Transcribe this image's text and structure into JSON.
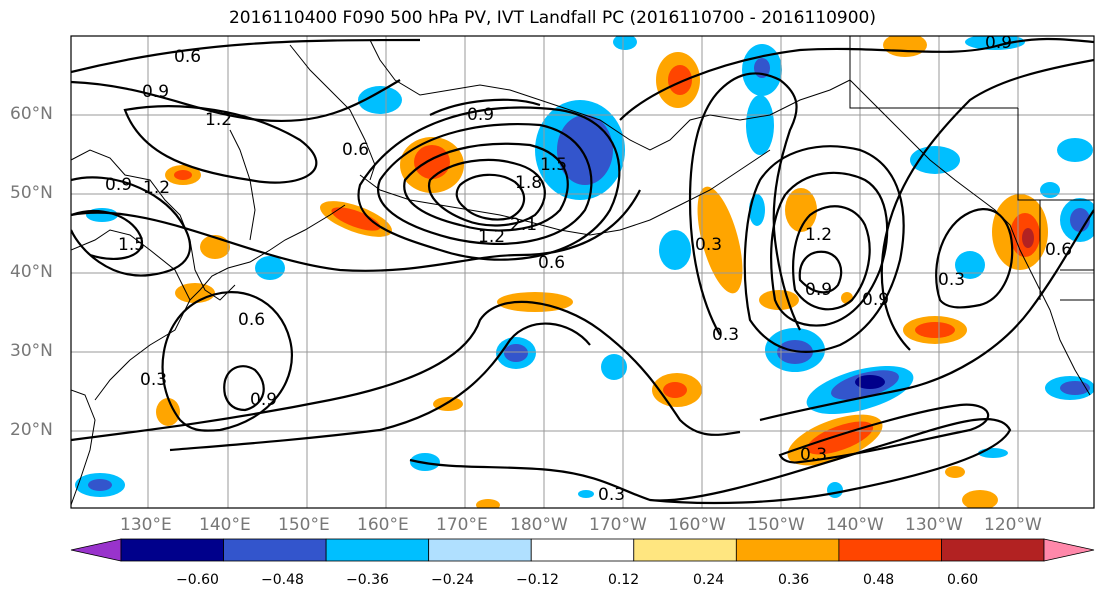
{
  "title": "2016110400 F090 500 hPa PV, IVT Landfall PC (2016110700 - 2016110900)",
  "lat_labels": [
    "60°N",
    "50°N",
    "40°N",
    "30°N",
    "20°N"
  ],
  "lon_labels": [
    "130°E",
    "140°E",
    "150°E",
    "160°E",
    "170°E",
    "180°W",
    "170°W",
    "160°W",
    "150°W",
    "140°W",
    "130°W",
    "120°W"
  ],
  "contour_labels": [
    "0.6",
    "0.9",
    "1.2",
    "0.6",
    "0.9",
    "1.5",
    "1.8",
    "2.1",
    "1.2",
    "0.6",
    "0.9",
    "1.2",
    "1.5",
    "0.6",
    "0.3",
    "0.9",
    "0.3",
    "0.3",
    "1.2",
    "0.9",
    "0.9",
    "0.3",
    "0.6",
    "0.9",
    "0.3",
    "0.3"
  ],
  "colorbar": {
    "ticks": [
      "−0.60",
      "−0.48",
      "−0.36",
      "−0.24",
      "−0.12",
      "0.12",
      "0.24",
      "0.36",
      "0.48",
      "0.60"
    ],
    "colors": [
      "#9933cc",
      "#00008b",
      "#3355cc",
      "#00bfff",
      "#b0e0ff",
      "#ffffff",
      "#ffe680",
      "#ffa500",
      "#ff4500",
      "#b22222",
      "#ff88aa"
    ]
  }
}
